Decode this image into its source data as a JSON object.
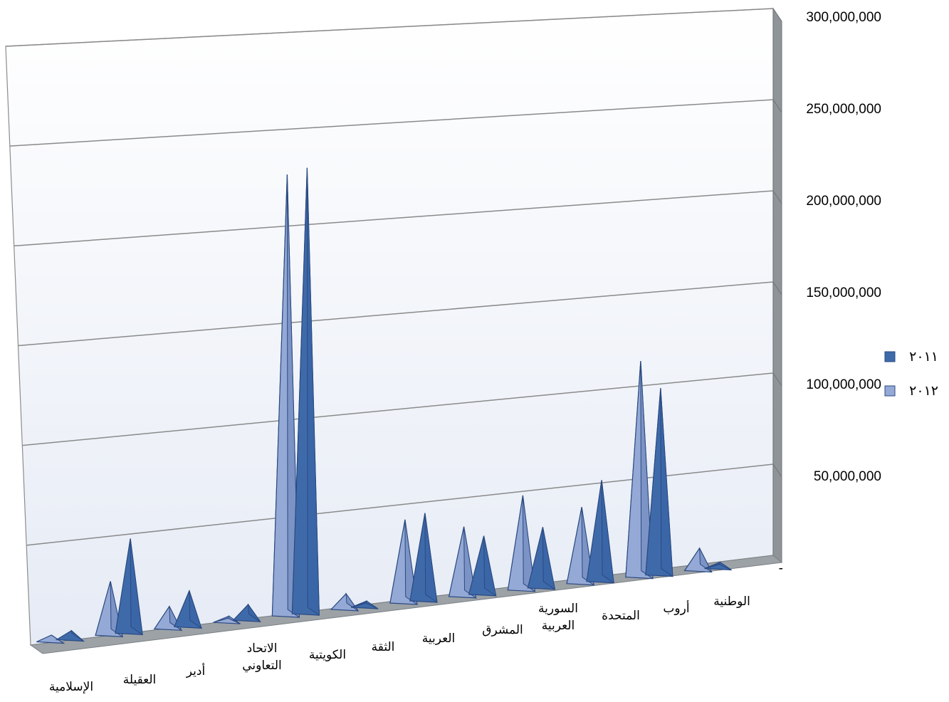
{
  "chart_data": {
    "type": "bar",
    "style": "3d-cone",
    "categories": [
      [
        "الإسلامية"
      ],
      [
        "العقيلة"
      ],
      [
        "أدير"
      ],
      [
        "الاتحاد",
        "التعاوني"
      ],
      [
        "الكويتية"
      ],
      [
        "الثقة"
      ],
      [
        "العربية"
      ],
      [
        "المشرق"
      ],
      [
        "السورية",
        "العربية"
      ],
      [
        "المتحدة"
      ],
      [
        "أروب"
      ],
      [
        "الوطنية"
      ]
    ],
    "series": [
      {
        "name": "٢٠١٢",
        "color": "#95a9d6",
        "values": [
          3000000,
          24000000,
          10000000,
          800000,
          196000000,
          7000000,
          37000000,
          31000000,
          42000000,
          34000000,
          96000000,
          10000000
        ]
      },
      {
        "name": "٢٠١١",
        "color": "#3f6aaa",
        "values": [
          4000000,
          42000000,
          16000000,
          7000000,
          198000000,
          1200000,
          39000000,
          26000000,
          27000000,
          45000000,
          83000000,
          1800000
        ]
      }
    ],
    "yticks": [
      "-",
      "50,000,000",
      "100,000,000",
      "150,000,000",
      "200,000,000",
      "250,000,000",
      "300,000,000"
    ],
    "ylim": [
      0,
      300000000
    ],
    "legend": {
      "position": "right",
      "entries": [
        "٢٠١١",
        "٢٠١٢"
      ],
      "colors": [
        "#3f6aaa",
        "#95a9d6"
      ]
    },
    "title": "",
    "xlabel": "",
    "ylabel": ""
  }
}
